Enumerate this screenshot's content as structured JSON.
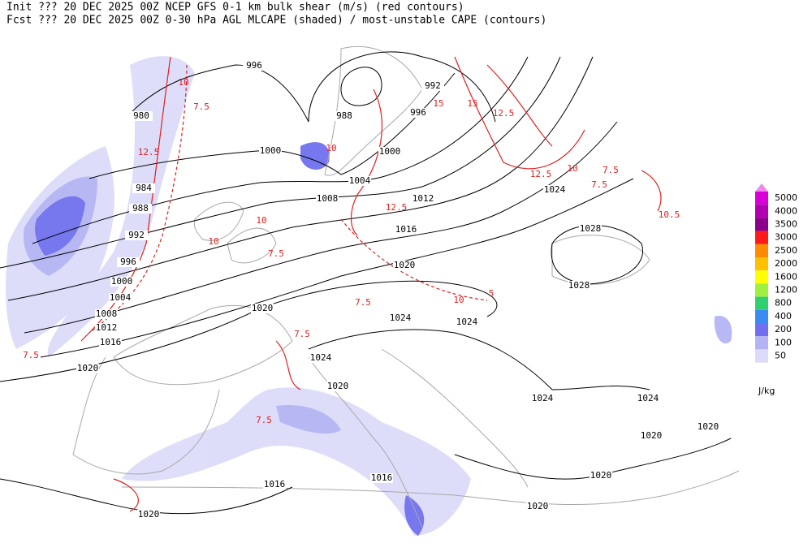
{
  "header": {
    "line1": "Init  ??? 20 DEC 2025 00Z  NCEP GFS 0-1 km bulk shear (m/s) (red contours)",
    "line2": "Fcst ??? 20 DEC 2025 00Z  0-30 hPa AGL MLCAPE (shaded) / most-unstable CAPE (contours)"
  },
  "legend": {
    "levels": [
      "5000",
      "4000",
      "3500",
      "3000",
      "2500",
      "2000",
      "1600",
      "1200",
      "800",
      "400",
      "200",
      "100",
      "50"
    ],
    "colors": [
      "#d700d7",
      "#b000b0",
      "#8a008a",
      "#ff1a1a",
      "#ff8c00",
      "#ffc000",
      "#ffff00",
      "#a0f040",
      "#30d070",
      "#3a8cf0",
      "#7070ee",
      "#b4b4f4",
      "#dcdcfa"
    ],
    "top_color": "#ee88ee",
    "unit": "J/kg"
  },
  "isobar_labels": [
    "996",
    "988",
    "992",
    "996",
    "1000",
    "980",
    "1000",
    "1004",
    "1008",
    "1012",
    "984",
    "988",
    "992",
    "996",
    "1000",
    "1004",
    "1008",
    "1012",
    "1016",
    "1016",
    "1020",
    "1024",
    "1028",
    "1028",
    "1020",
    "1024",
    "1024",
    "1024",
    "1024",
    "1024",
    "1020",
    "1020",
    "1020",
    "1020",
    "1016",
    "1016",
    "1020",
    "1020",
    "1020"
  ],
  "shear_labels": [
    "7.5",
    "10",
    "12.5",
    "15",
    "10",
    "12.5",
    "7.5",
    "10",
    "10",
    "15",
    "12.5",
    "10",
    "7.5",
    "7.5",
    "10",
    "7.5",
    "5",
    "7.5",
    "7.5",
    "10.5",
    "12.5",
    "7.5"
  ]
}
